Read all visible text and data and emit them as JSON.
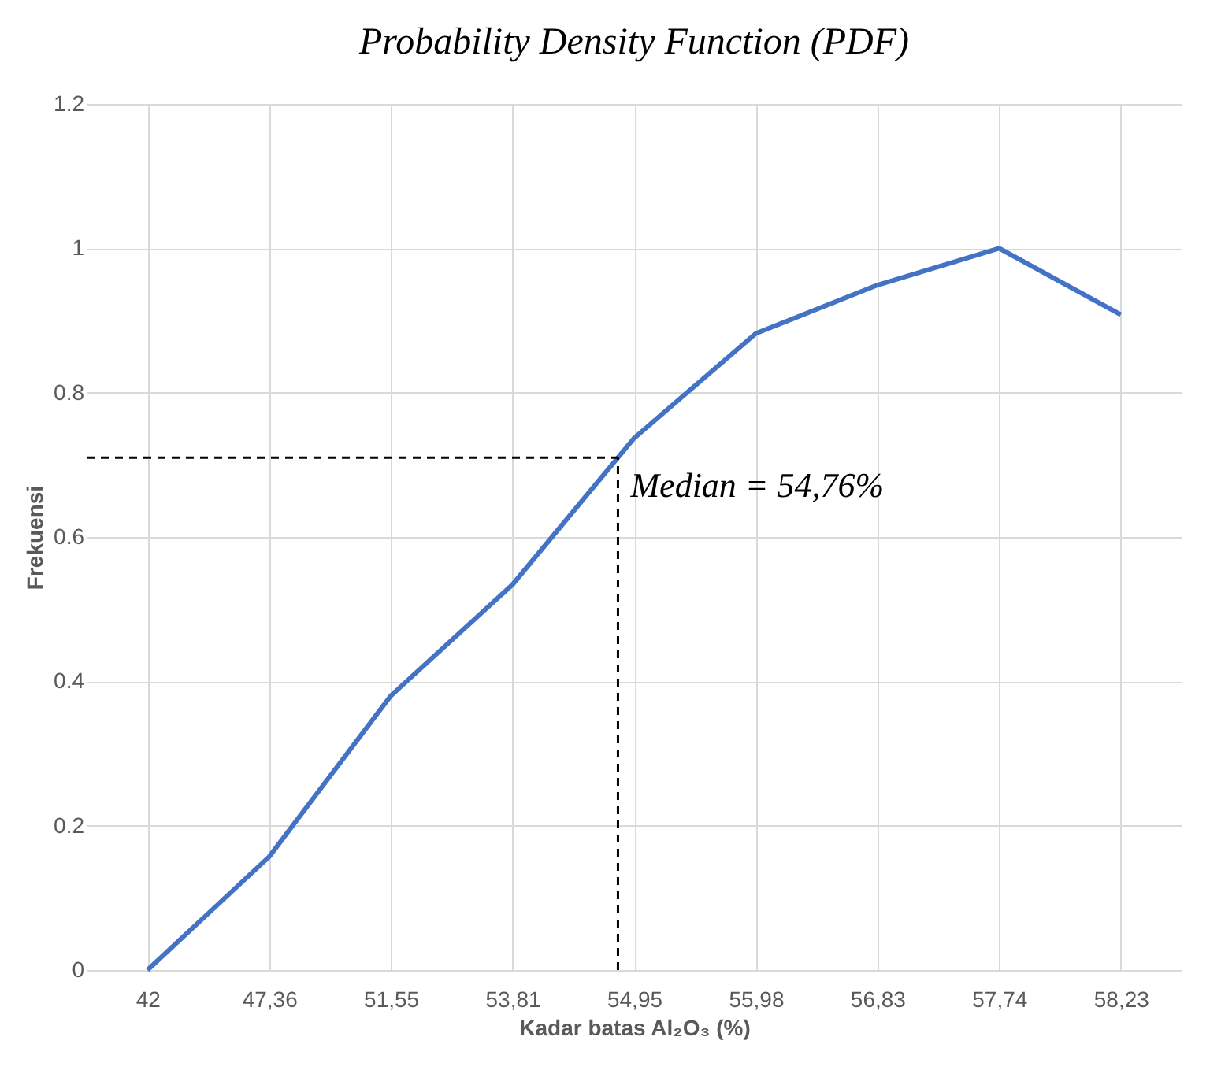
{
  "chart_data": {
    "type": "line",
    "title": "Probability Density Function (PDF)",
    "xlabel": "Kadar batas Al₂O₃ (%)",
    "ylabel": "Frekuensi",
    "categories": [
      "42",
      "47,36",
      "51,55",
      "53,81",
      "54,95",
      "55,98",
      "56,83",
      "57,74",
      "58,23"
    ],
    "series": [
      {
        "color": "#4472c4",
        "values": [
          0,
          0.157,
          0.38,
          0.534,
          0.737,
          0.882,
          0.949,
          1.0,
          0.908
        ]
      }
    ],
    "ylim": [
      0,
      1.2
    ],
    "yticks": [
      0,
      0.2,
      0.4,
      0.6,
      0.8,
      1,
      1.2
    ],
    "grid": true,
    "marker": "none",
    "line_style": "solid",
    "ref_lines": [
      {
        "axis": "y",
        "value": 0.71,
        "label": null,
        "color": "#000000",
        "line_style": "dashed"
      }
    ],
    "annotations": [
      "Median = 54,76%"
    ]
  }
}
